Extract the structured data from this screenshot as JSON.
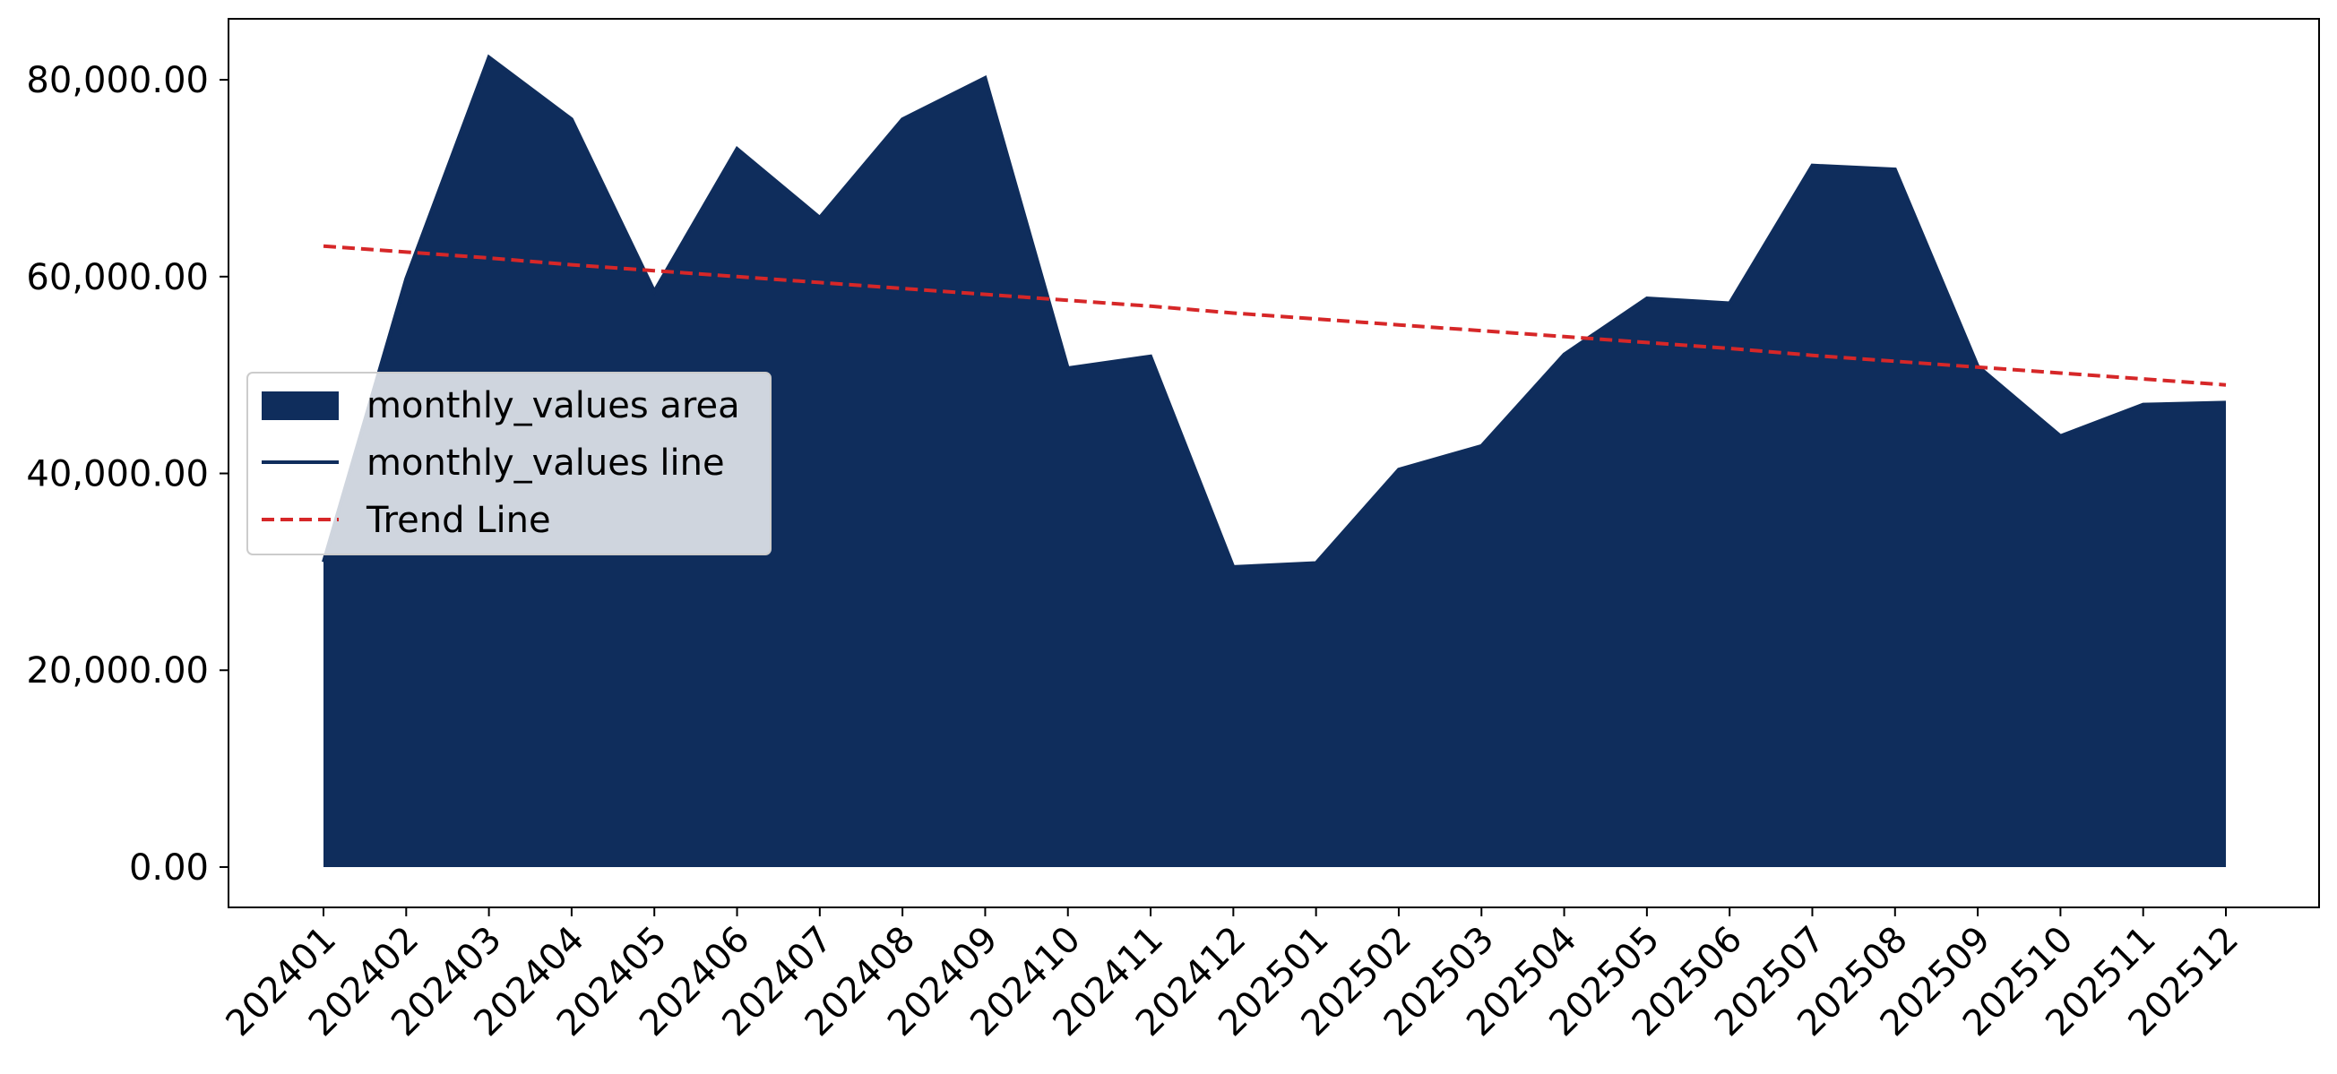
{
  "chart_data": {
    "type": "area",
    "title": "",
    "xlabel": "",
    "ylabel": "",
    "categories": [
      "202401",
      "202402",
      "202403",
      "202404",
      "202405",
      "202406",
      "202407",
      "202408",
      "202409",
      "202410",
      "202411",
      "202412",
      "202501",
      "202502",
      "202503",
      "202504",
      "202505",
      "202506",
      "202507",
      "202508",
      "202509",
      "202510",
      "202511",
      "202512"
    ],
    "series": [
      {
        "name": "monthly_values area",
        "kind": "area",
        "color": "#0f2d5c",
        "values": [
          31000,
          59800,
          82300,
          76000,
          58500,
          73000,
          66000,
          76000,
          80200,
          50700,
          51900,
          30500,
          30900,
          40400,
          42800,
          52100,
          57800,
          57300,
          71300,
          70900,
          50900,
          43800,
          47000,
          47200
        ]
      },
      {
        "name": "monthly_values line",
        "kind": "line",
        "color": "#0f2d5c",
        "values": [
          31000,
          59800,
          82300,
          76000,
          58500,
          73000,
          66000,
          76000,
          80200,
          50700,
          51900,
          30500,
          30900,
          40400,
          42800,
          52100,
          57800,
          57300,
          71300,
          70900,
          50900,
          43800,
          47000,
          47200
        ]
      },
      {
        "name": "Trend Line",
        "kind": "dashed-line",
        "color": "#d62728",
        "values": [
          63100,
          62500,
          61900,
          61200,
          60600,
          60000,
          59400,
          58800,
          58200,
          57600,
          57000,
          56300,
          55700,
          55100,
          54500,
          53900,
          53300,
          52700,
          52000,
          51400,
          50800,
          50200,
          49600,
          49000
        ]
      }
    ],
    "yticks": [
      "0.00",
      "20,000.00",
      "40,000.00",
      "60,000.00",
      "80,000.00"
    ],
    "ytick_values": [
      0,
      20000,
      40000,
      60000,
      80000
    ],
    "ylim": [
      -4100,
      86200
    ],
    "grid": false,
    "legend_position": "center-left"
  }
}
